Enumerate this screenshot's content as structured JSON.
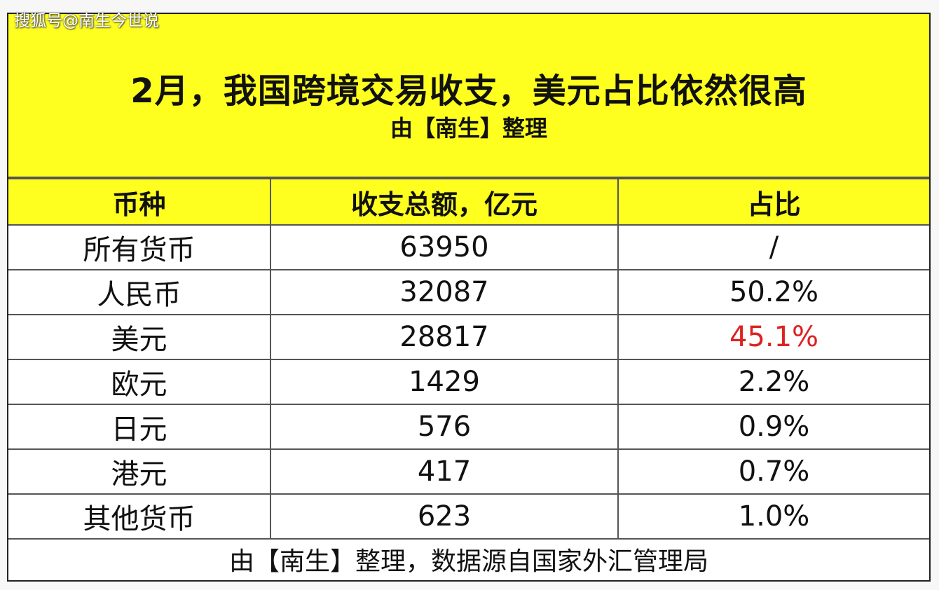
{
  "watermark": "搜狐号@南生今世说",
  "title": "2月，我国跨境交易收支，美元占比依然很高",
  "subtitle": "由【南生】整理",
  "footer": "由【南生】整理，数据源自国家外汇管理局",
  "colors": {
    "header_bg": "#ffff1f",
    "highlight": "#dd2222"
  },
  "chart_data": {
    "type": "table",
    "columns": [
      "币种",
      "收支总额，亿元",
      "占比"
    ],
    "rows": [
      [
        "所有货币",
        "63950",
        "/"
      ],
      [
        "人民币",
        "32087",
        "50.2%"
      ],
      [
        "美元",
        "28817",
        "45.1%"
      ],
      [
        "欧元",
        "1429",
        "2.2%"
      ],
      [
        "日元",
        "576",
        "0.9%"
      ],
      [
        "港元",
        "417",
        "0.7%"
      ],
      [
        "其他货币",
        "623",
        "1.0%"
      ]
    ],
    "highlight_cell": {
      "row": 2,
      "col": 2
    }
  }
}
